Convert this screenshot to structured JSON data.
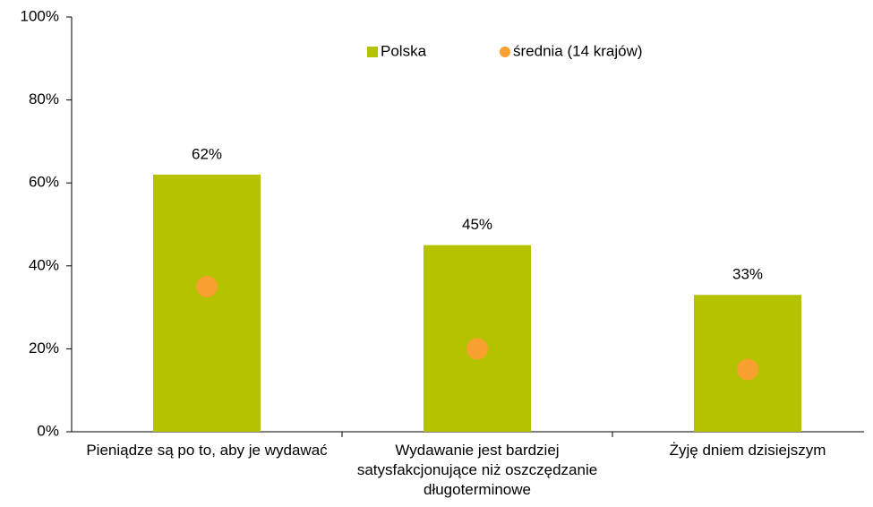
{
  "chart_data": {
    "type": "bar",
    "categories": [
      "Pieniądze są po to, aby je wydawać",
      "Wydawanie jest bardziej satysfakcjonujące niż oszczędzanie długoterminowe",
      "Żyję dniem dzisiejszym"
    ],
    "series": [
      {
        "name": "Polska",
        "type": "bar",
        "color": "#b5c200",
        "values": [
          62,
          45,
          33
        ],
        "value_labels": [
          "62%",
          "45%",
          "33%"
        ]
      },
      {
        "name": "średnia (14 krajów)",
        "type": "scatter",
        "color": "#f9a030",
        "values": [
          35,
          20,
          15
        ]
      }
    ],
    "ylim": [
      0,
      100
    ],
    "yticks": [
      {
        "value": 0,
        "label": "0%"
      },
      {
        "value": 20,
        "label": "20%"
      },
      {
        "value": 40,
        "label": "40%"
      },
      {
        "value": 60,
        "label": "60%"
      },
      {
        "value": 80,
        "label": "80%"
      },
      {
        "value": 100,
        "label": "100%"
      }
    ],
    "grid": false,
    "legend": "top"
  }
}
